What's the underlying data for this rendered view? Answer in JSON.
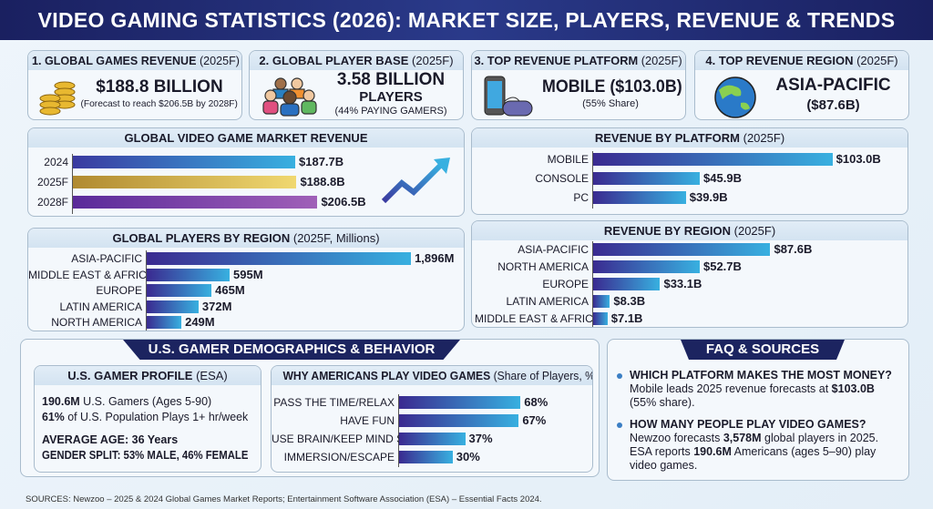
{
  "title": "VIDEO GAMING STATISTICS (2026): MARKET SIZE, PLAYERS, REVENUE & TRENDS",
  "cards": [
    {
      "head": "1. GLOBAL GAMES REVENUE",
      "sub": "(2025F)",
      "main": "$188.8 BILLION",
      "note": "(Forecast to reach $206.5B by 2028F)",
      "icon": "coins-icon"
    },
    {
      "head": "2. GLOBAL PLAYER BASE",
      "sub": "(2025F)",
      "main": "3.58 BILLION",
      "main2": "PLAYERS",
      "note": "(44% PAYING GAMERS)",
      "icon": "people-icon"
    },
    {
      "head": "3. TOP REVENUE PLATFORM",
      "sub": "(2025F)",
      "main": "MOBILE ($103.0B)",
      "note": "(55% Share)",
      "icon": "phone-gamepad-icon"
    },
    {
      "head": "4. TOP REVENUE REGION",
      "sub": "(2025F)",
      "main": "ASIA-PACIFIC",
      "main2": "($87.6B)",
      "icon": "globe-icon"
    }
  ],
  "chart_data": [
    {
      "type": "bar",
      "title": "GLOBAL VIDEO GAME MARKET REVENUE",
      "categories": [
        "2024",
        "2025F",
        "2028F"
      ],
      "values": [
        187.7,
        188.8,
        206.5
      ],
      "labels": [
        "$187.7B",
        "$188.8B",
        "$206.5B"
      ],
      "colors": [
        "#3a3aa0,#38b0e0",
        "#b08a30,#f0d870",
        "#5a2a9a,#a060b8"
      ]
    },
    {
      "type": "bar",
      "title": "GLOBAL PLAYERS BY REGION",
      "subtitle": "(2025F, Millions)",
      "categories": [
        "ASIA-PACIFIC",
        "MIDDLE EAST & AFRICA",
        "EUROPE",
        "LATIN AMERICA",
        "NORTH AMERICA"
      ],
      "values": [
        1896,
        595,
        465,
        372,
        249
      ],
      "labels": [
        "1,896M",
        "595M",
        "465M",
        "372M",
        "249M"
      ]
    },
    {
      "type": "bar",
      "title": "REVENUE BY PLATFORM",
      "subtitle": "(2025F)",
      "categories": [
        "MOBILE",
        "CONSOLE",
        "PC"
      ],
      "values": [
        103.0,
        45.9,
        39.9
      ],
      "labels": [
        "$103.0B",
        "$45.9B",
        "$39.9B"
      ]
    },
    {
      "type": "bar",
      "title": "REVENUE BY REGION",
      "subtitle": "(2025F)",
      "categories": [
        "ASIA-PACIFIC",
        "NORTH AMERICA",
        "EUROPE",
        "LATIN AMERICA",
        "MIDDLE EAST & AFRICA"
      ],
      "values": [
        87.6,
        52.7,
        33.1,
        8.3,
        7.1
      ],
      "labels": [
        "$87.6B",
        "$52.7B",
        "$33.1B",
        "$8.3B",
        "$7.1B"
      ]
    },
    {
      "type": "bar",
      "title": "WHY AMERICANS PLAY VIDEO GAMES",
      "subtitle": "(Share of Players, %)",
      "categories": [
        "PASS THE TIME/RELAX",
        "HAVE FUN",
        "USE BRAIN/KEEP MIND SHARP",
        "IMMERSION/ESCAPE"
      ],
      "values": [
        68,
        67,
        37,
        30
      ],
      "labels": [
        "68%",
        "67%",
        "37%",
        "30%"
      ]
    }
  ],
  "demographics": {
    "title": "U.S. GAMER DEMOGRAPHICS & BEHAVIOR",
    "profile_head": "U.S. GAMER PROFILE",
    "profile_sub": "(ESA)",
    "l1b": "190.6M",
    "l1": " U.S. Gamers (Ages 5-90)",
    "l2b": "61%",
    "l2": " of U.S. Population Plays 1+ hr/week",
    "l3": "AVERAGE AGE: 36 Years",
    "l4": "GENDER SPLIT: 53% MALE, 46% FEMALE"
  },
  "faq": {
    "title": "FAQ & SOURCES",
    "q1": "WHICH PLATFORM MAKES THE MOST MONEY?",
    "a1a": "Mobile leads 2025 revenue forecasts at ",
    "a1b": "$103.0B",
    "a1c": " (55% share).",
    "q2": "HOW MANY PEOPLE PLAY VIDEO GAMES?",
    "a2a": "Newzoo forecasts ",
    "a2b": "3,578M",
    "a2c": " global players in 2025. ESA reports ",
    "a2d": "190.6M",
    "a2e": " Americans (ages 5–90) play video games."
  },
  "sources": "SOURCES: Newzoo – 2025 & 2024 Global Games Market Reports; Entertainment Software Association (ESA) – Essential Facts 2024."
}
